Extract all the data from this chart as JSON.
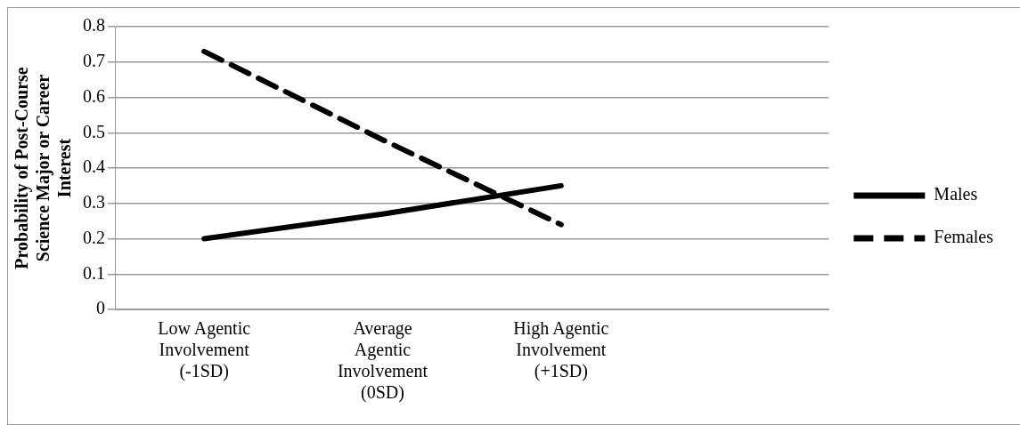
{
  "chart_data": {
    "type": "line",
    "ylabel": "Probability of Post-Course Science Major or Career Interest",
    "categories": [
      "Low Agentic Involvement (-1SD)",
      "Average Agentic Involvement (0SD)",
      "High Agentic Involvement (+1SD)",
      null
    ],
    "series": [
      {
        "name": "Males",
        "color": "#000000",
        "line_style": "solid",
        "values": [
          0.2,
          0.27,
          0.35,
          null
        ]
      },
      {
        "name": "Females",
        "color": "#000000",
        "line_style": "dashed",
        "values": [
          0.73,
          0.48,
          0.24,
          null
        ]
      }
    ],
    "ylim": [
      0,
      0.8
    ],
    "yticks": [
      0,
      0.1,
      0.2,
      0.3,
      0.4,
      0.5,
      0.6,
      0.7,
      0.8
    ],
    "grid": "y",
    "legend": "right",
    "marker": "none"
  }
}
